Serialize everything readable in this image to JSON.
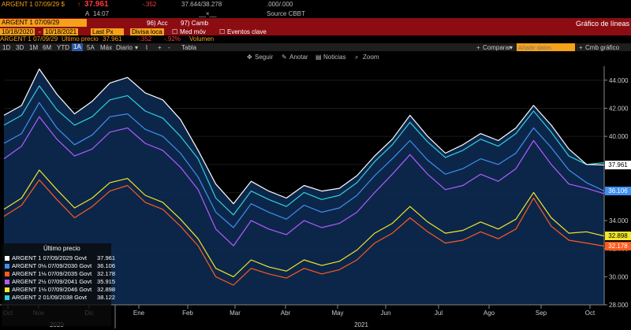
{
  "header": {
    "ticker": "ARGENT 1 07/09/29 $",
    "arrow": "↑",
    "price": "37.961",
    "change": "-.352",
    "bid_ask": "37.644/38.278",
    "size": ".000/.000",
    "label_a": "A",
    "time": "14:07",
    "sep": "__×__",
    "source": "Source CBBT"
  },
  "titlebar": {
    "security": "ARGENT 1 07/09/29",
    "btn1": "96) Acc",
    "btn2": "97) Camb",
    "title": "Gráfico de líneas"
  },
  "params": {
    "start_date": "10/18/2020",
    "end_date": "10/18/2021",
    "field": "Last Px",
    "currency": "Divisa loca",
    "med_mov": "Med móv",
    "events": "Eventos clave"
  },
  "subheader": {
    "security": "ARGENT 1 07/09/29",
    "label": "Último precio",
    "price": "37.961",
    "change": "-.352",
    "pct": "-.92%",
    "volume": "Volumen"
  },
  "toolbar": {
    "ranges": [
      "1D",
      "3D",
      "1M",
      "6M",
      "YTD",
      "1A",
      "5A",
      "Máx"
    ],
    "selected": "1A",
    "period": "Diario",
    "table": "Tabla",
    "compare": "Comparar",
    "add_data_placeholder": "Añadir datos",
    "cmb": "Cmb gráfico"
  },
  "chart_tools": [
    "Seguir",
    "Anotar",
    "Noticias",
    "Zoom"
  ],
  "colors": {
    "s1": "#ffffff",
    "s2": "#3f8ff0",
    "s3": "#ff5a1e",
    "s4": "#b05cff",
    "s5": "#f0e62a",
    "s6": "#2fd0dc",
    "fill": "#0d2a52",
    "background": "#000000"
  },
  "chart_data": {
    "type": "line",
    "ylim": [
      28,
      45
    ],
    "yticks": [
      "44.000",
      "42.000",
      "40.000",
      "38.000",
      "36.000",
      "34.000",
      "32.000",
      "30.000",
      "28.000"
    ],
    "x_month_ticks": [
      "Oct",
      "Nov",
      "Dic",
      "Ene",
      "Feb",
      "Mar",
      "Abr",
      "May",
      "Jun",
      "Jul",
      "Ago",
      "Sep",
      "Oct"
    ],
    "years": [
      "2020",
      "2021"
    ],
    "legend_title": "Último precio",
    "series": [
      {
        "name": "ARGENT 1 07/09/2029 Govt",
        "last": "37.961",
        "color": "#ffffff",
        "values": [
          41.5,
          42.2,
          44.8,
          43.0,
          41.6,
          42.5,
          43.8,
          44.2,
          43.1,
          42.6,
          41.2,
          39.0,
          36.6,
          35.2,
          36.8,
          36.1,
          35.6,
          36.5,
          36.1,
          36.3,
          37.2,
          38.6,
          39.8,
          41.5,
          40.0,
          38.8,
          39.4,
          40.2,
          39.7,
          40.6,
          42.2,
          40.8,
          39.1,
          38.0,
          37.961
        ]
      },
      {
        "name": "ARGENT 0⅛ 07/09/2030 Govt",
        "last": "36.106",
        "color": "#3f8ff0",
        "values": [
          39.5,
          40.2,
          42.4,
          40.6,
          39.4,
          40.1,
          41.4,
          41.6,
          40.5,
          40.0,
          38.8,
          37.1,
          34.6,
          33.5,
          35.2,
          34.6,
          34.1,
          35.1,
          34.6,
          34.9,
          35.8,
          37.2,
          38.4,
          39.7,
          38.3,
          37.3,
          37.7,
          38.4,
          38.0,
          38.8,
          40.6,
          39.2,
          37.6,
          36.7,
          36.106
        ]
      },
      {
        "name": "ARGENT 1⅛ 07/09/2035 Govt",
        "last": "32.178",
        "color": "#ff5a1e",
        "values": [
          34.3,
          35.1,
          36.9,
          35.5,
          34.2,
          35.0,
          36.1,
          36.5,
          35.3,
          34.8,
          33.6,
          32.2,
          30.0,
          29.4,
          30.6,
          30.2,
          29.9,
          30.6,
          30.2,
          30.5,
          31.2,
          32.4,
          33.1,
          34.2,
          33.2,
          32.4,
          32.6,
          33.2,
          32.7,
          33.4,
          35.6,
          33.6,
          32.6,
          32.4,
          32.178
        ]
      },
      {
        "name": "ARGENT 2½ 07/09/2041 Govt",
        "last": "35.915",
        "color": "#b05cff",
        "values": [
          38.4,
          39.3,
          41.4,
          39.8,
          38.6,
          39.1,
          40.3,
          40.6,
          39.5,
          39.0,
          37.8,
          36.2,
          33.4,
          32.2,
          34.0,
          33.4,
          33.0,
          34.0,
          33.5,
          33.8,
          34.6,
          36.0,
          37.3,
          38.7,
          37.3,
          36.2,
          36.5,
          37.3,
          36.8,
          37.7,
          39.7,
          38.0,
          36.6,
          36.3,
          35.915
        ]
      },
      {
        "name": "ARGENT 1⅛ 07/09/2046 Govt",
        "last": "32.898",
        "color": "#f0e62a",
        "values": [
          34.8,
          35.6,
          37.6,
          36.2,
          34.9,
          35.6,
          36.7,
          37.0,
          35.8,
          35.3,
          34.1,
          32.7,
          30.6,
          30.0,
          31.2,
          30.7,
          30.4,
          31.2,
          30.8,
          31.1,
          31.9,
          33.1,
          33.8,
          35.0,
          33.9,
          33.1,
          33.3,
          33.9,
          33.4,
          34.1,
          36.0,
          34.2,
          33.1,
          33.2,
          32.898
        ]
      },
      {
        "name": "ARGENT 2 01/09/2038 Govt",
        "last": "38.122",
        "color": "#2fd0dc",
        "values": [
          40.8,
          41.5,
          43.6,
          41.9,
          40.8,
          41.4,
          42.6,
          42.9,
          41.8,
          41.3,
          40.0,
          38.4,
          35.6,
          34.4,
          36.1,
          35.5,
          35.0,
          36.0,
          35.5,
          35.8,
          36.7,
          38.2,
          39.4,
          41.0,
          39.6,
          38.5,
          39.0,
          39.8,
          39.3,
          40.2,
          41.8,
          40.3,
          38.6,
          38.0,
          38.122
        ]
      }
    ]
  },
  "price_tags": [
    {
      "value": "37.961",
      "price": 37.961,
      "bg": "#ffffff",
      "fg": "#000000"
    },
    {
      "value": "36.106",
      "price": 36.106,
      "bg": "#3f8ff0",
      "fg": "#ffffff"
    },
    {
      "value": "32.898",
      "price": 32.898,
      "bg": "#f0e62a",
      "fg": "#000000"
    },
    {
      "value": "32.178",
      "price": 32.178,
      "bg": "#ff5a1e",
      "fg": "#ffffff"
    }
  ]
}
